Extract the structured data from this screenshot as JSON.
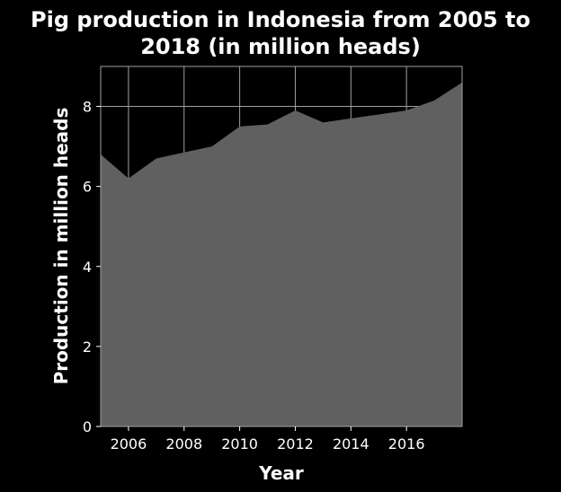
{
  "chart_data": {
    "type": "area",
    "title_lines": [
      "Pig production in Indonesia from 2005 to",
      "2018 (in million heads)"
    ],
    "xlabel": "Year",
    "ylabel": "Production in million heads",
    "x": [
      2005,
      2006,
      2007,
      2008,
      2009,
      2010,
      2011,
      2012,
      2013,
      2014,
      2015,
      2016,
      2017,
      2018
    ],
    "series": [
      {
        "values": [
          6.8,
          6.2,
          6.7,
          6.85,
          7.0,
          7.5,
          7.55,
          7.9,
          7.6,
          7.7,
          7.8,
          7.9,
          8.15,
          8.6
        ]
      }
    ],
    "xlim": [
      2005,
      2018
    ],
    "ylim": [
      0,
      9
    ],
    "xticks": [
      2006,
      2008,
      2010,
      2012,
      2014,
      2016
    ],
    "yticks": [
      0,
      2,
      4,
      6,
      8
    ],
    "grid": true,
    "colors": {
      "background": "#000000",
      "area": "#606060",
      "grid": "#a0a0a0",
      "text": "#ffffff"
    }
  }
}
